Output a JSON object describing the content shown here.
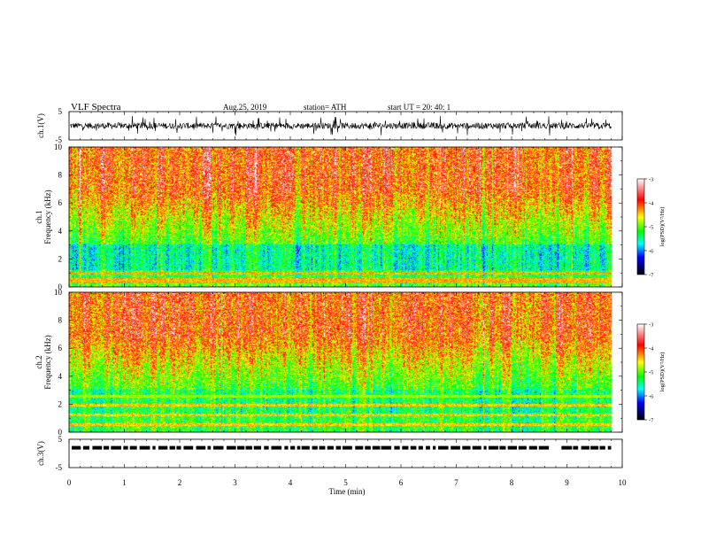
{
  "header": {
    "title": "VLF  Spectra",
    "date": "Aug.25, 2019",
    "station": "station= ATH",
    "start_ut": "start  UT  =    20: 40: 1"
  },
  "chart_data": [
    {
      "type": "line",
      "panel": "ch1-waveform",
      "ylabel": "ch.1(V)",
      "ylim": [
        -5,
        5
      ],
      "yticks": [
        "5",
        "-5"
      ],
      "xlim": [
        0,
        10
      ],
      "series": [
        {
          "color": "#000000",
          "description_level": "noise about 0 V, amplitude roughly ±2 V"
        }
      ]
    },
    {
      "type": "heatmap",
      "panel": "ch1-spectrogram",
      "ylabel_channel": "ch.1",
      "ylabel": "Frequency  (kHz)",
      "ylim": [
        0,
        10
      ],
      "yticks": [
        "0",
        "2",
        "4",
        "6",
        "8",
        "10"
      ],
      "xlim": [
        0,
        10
      ],
      "data_extent_min": 9.8,
      "colorbar": {
        "label": "log(PSD)(V²/Hz)",
        "range": [
          -7,
          -3
        ],
        "ticks": [
          "-3",
          "-4",
          "-5",
          "-6",
          "-7"
        ],
        "colors": [
          "#ffffff",
          "#ff0000",
          "#ffff00",
          "#00ff00",
          "#00ffff",
          "#0000ff",
          "#000000"
        ]
      }
    },
    {
      "type": "heatmap",
      "panel": "ch2-spectrogram",
      "ylabel_channel": "ch.2",
      "ylabel": "Frequency  (kHz)",
      "ylim": [
        0,
        10
      ],
      "yticks": [
        "0",
        "2",
        "4",
        "6",
        "8",
        "10"
      ],
      "xlim": [
        0,
        10
      ],
      "data_extent_min": 9.8,
      "colorbar": {
        "label": "log(PSD)(V²/Hz)",
        "range": [
          -7,
          -3
        ],
        "ticks": [
          "-3",
          "-4",
          "-5",
          "-6",
          "-7"
        ],
        "colors": [
          "#ffffff",
          "#ff0000",
          "#ffff00",
          "#00ff00",
          "#00ffff",
          "#0000ff",
          "#000000"
        ]
      }
    },
    {
      "type": "line",
      "panel": "ch3-waveform",
      "ylabel": "ch.3(V)",
      "ylim": [
        -5,
        5
      ],
      "yticks": [
        "5",
        "-5"
      ],
      "xlim": [
        0,
        10
      ],
      "series": [
        {
          "color": "#000000",
          "level_v": 2,
          "gap_minutes": [
            8.55,
            8.8
          ]
        }
      ]
    }
  ],
  "x_axis": {
    "label": "Time  (min)",
    "ticks": [
      "0",
      "1",
      "2",
      "3",
      "4",
      "5",
      "6",
      "7",
      "8",
      "9",
      "10"
    ],
    "range": [
      0,
      10
    ]
  }
}
